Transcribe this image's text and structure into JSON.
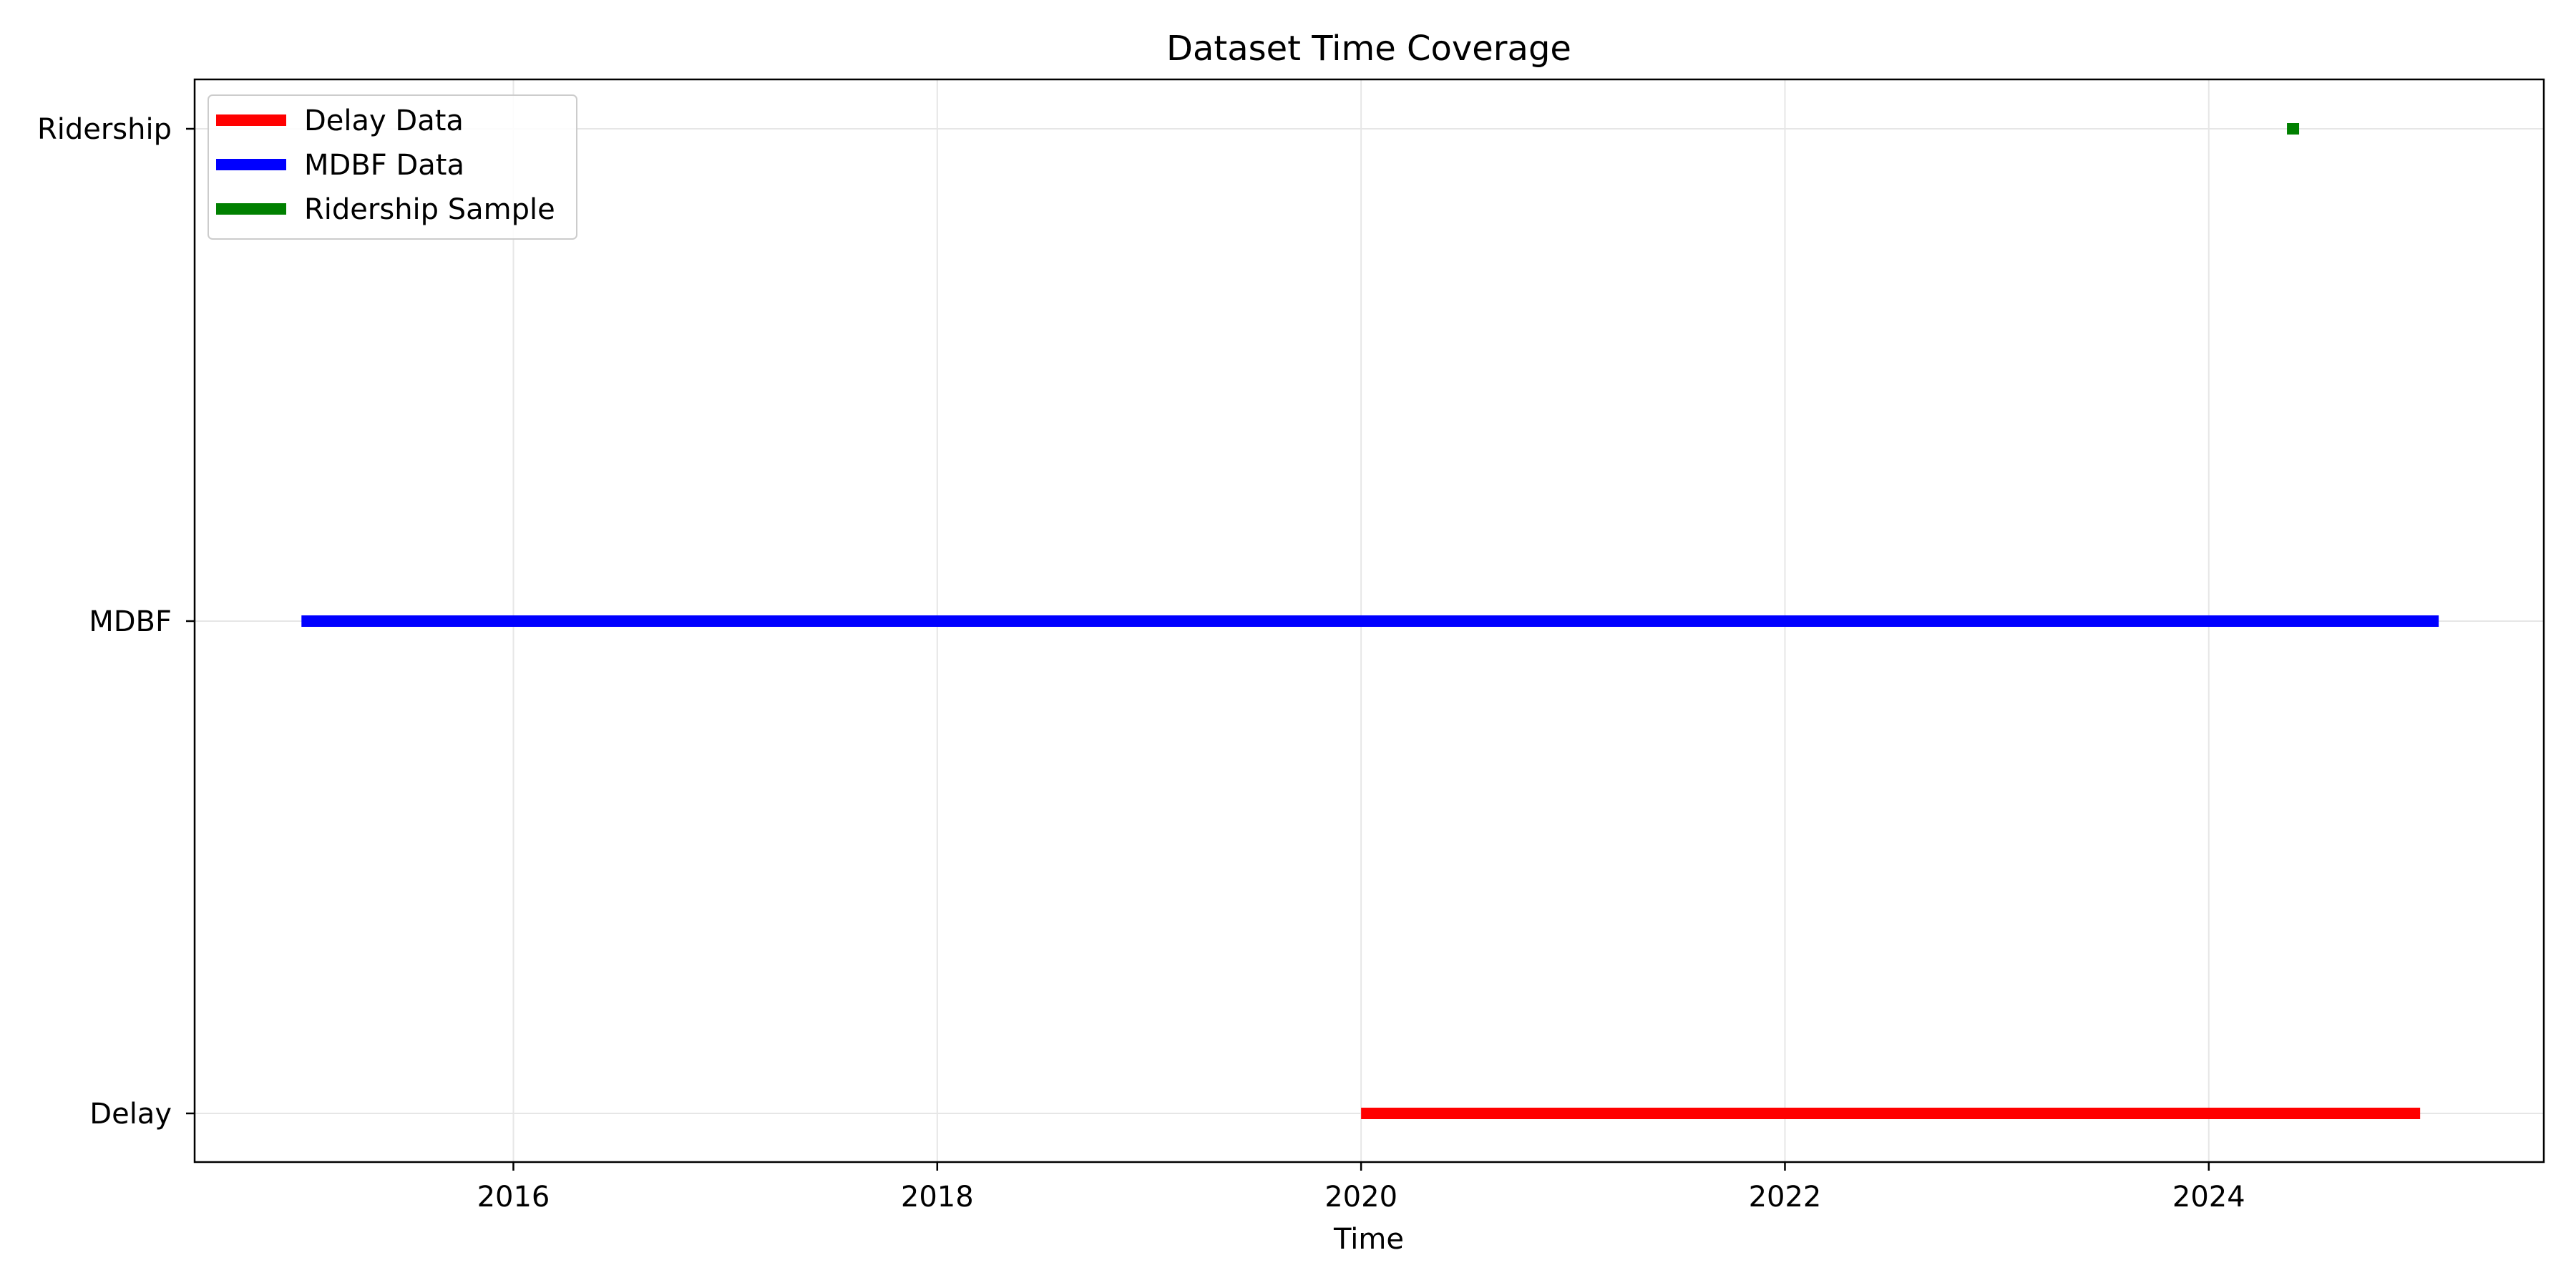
{
  "chart_data": {
    "type": "timeline",
    "title": "Dataset Time Coverage",
    "xlabel": "Time",
    "ylabel": "",
    "x_ticks": [
      "2016",
      "2018",
      "2020",
      "2022",
      "2024"
    ],
    "y_categories": [
      "Delay",
      "MDBF",
      "Ridership"
    ],
    "xlim": [
      "2014-07-01",
      "2025-08-01"
    ],
    "grid": true,
    "legend_position": "top-left",
    "series": [
      {
        "name": "Delay Data",
        "category": "Delay",
        "start": "2020-01-01",
        "end": "2024-12-31",
        "color": "#ff0000"
      },
      {
        "name": "MDBF Data",
        "category": "MDBF",
        "start": "2015-01-01",
        "end": "2025-02-01",
        "color": "#0000ff"
      },
      {
        "name": "Ridership Sample",
        "category": "Ridership",
        "start": "2024-05-15",
        "end": "2024-06-05",
        "color": "#008000"
      }
    ]
  }
}
